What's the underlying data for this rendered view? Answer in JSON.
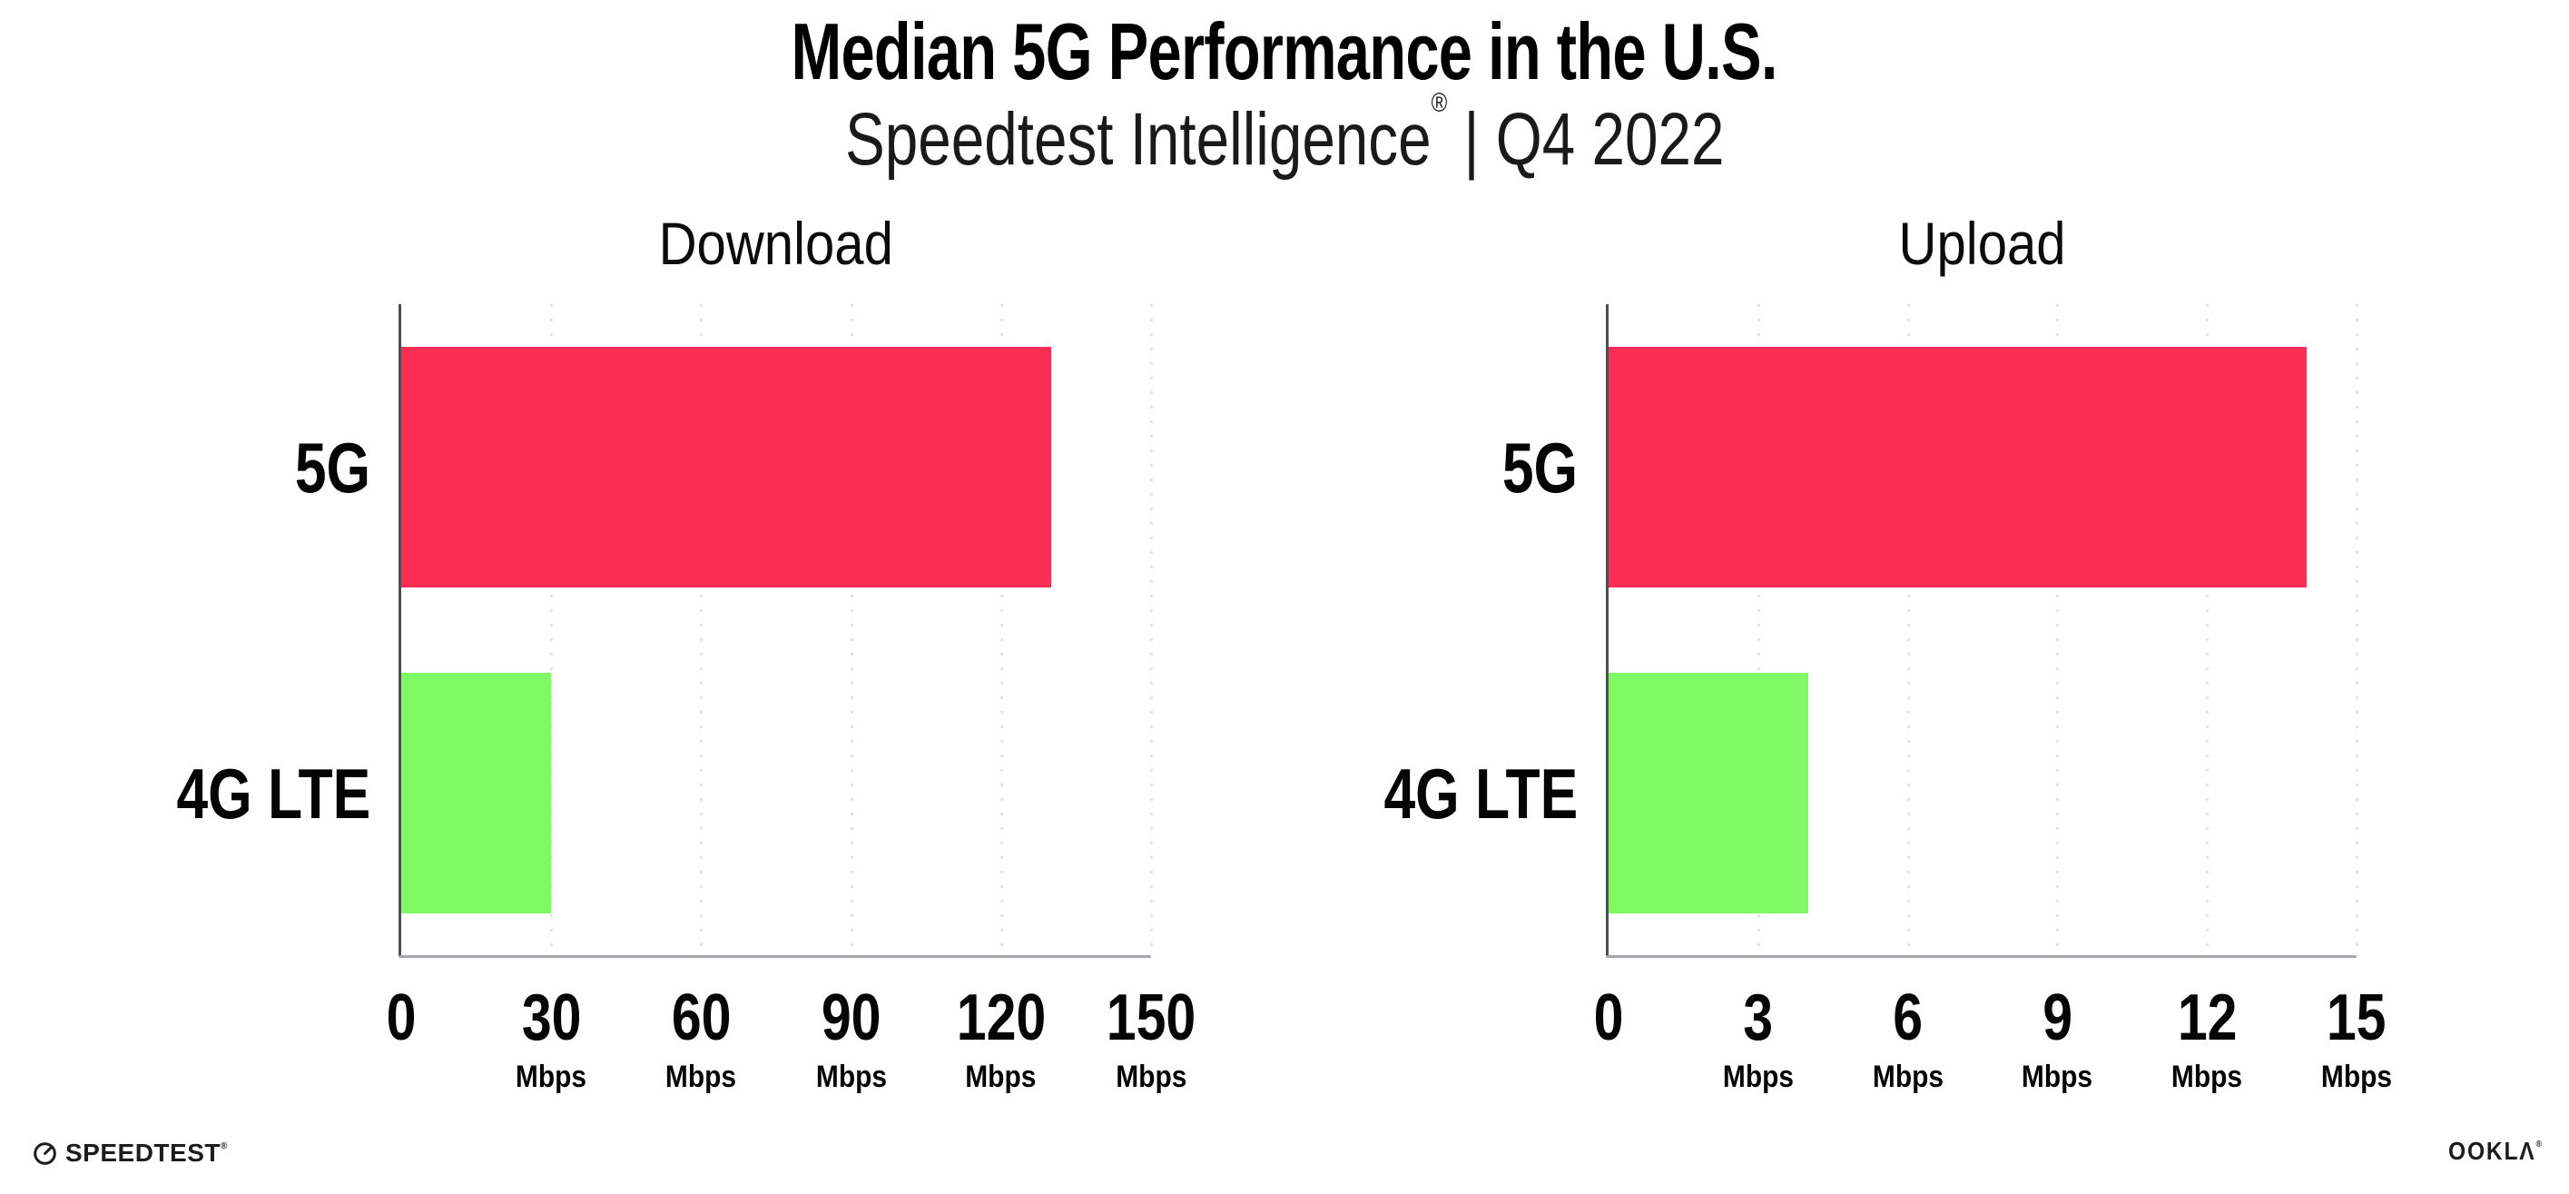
{
  "title": "Median 5G Performance in the U.S.",
  "subtitle": {
    "brand": "Speedtest Intelligence",
    "reg": "®",
    "rest": " | Q4 2022"
  },
  "chart_data": [
    {
      "type": "bar",
      "orientation": "horizontal",
      "title": "Download",
      "categories": [
        "5G",
        "4G LTE"
      ],
      "values": [
        130,
        30
      ],
      "unit": "Mbps",
      "xlim": [
        0,
        150
      ],
      "xticks": [
        0,
        30,
        60,
        90,
        120,
        150
      ],
      "series_colors": [
        "#FC2E56",
        "#80FA64"
      ],
      "grid": "vertical-dotted",
      "legend": "none"
    },
    {
      "type": "bar",
      "orientation": "horizontal",
      "title": "Upload",
      "categories": [
        "5G",
        "4G LTE"
      ],
      "values": [
        14,
        4
      ],
      "unit": "Mbps",
      "xlim": [
        0,
        15
      ],
      "xticks": [
        0,
        3,
        6,
        9,
        12,
        15
      ],
      "series_colors": [
        "#FC2E56",
        "#80FA64"
      ],
      "grid": "vertical-dotted",
      "legend": "none"
    }
  ],
  "colors": {
    "bar_5g": "#FC2E56",
    "bar_4g_lte": "#80FA64",
    "gridline": "#E3E3EC",
    "x_axis": "#A6A6AD",
    "y_spine": "#4E4E55",
    "text": "#050505"
  },
  "footer": {
    "speedtest_logo_text": "SPEEDTEST",
    "speedtest_reg": "®",
    "ookla_logo_text": "OOKLΛ",
    "ookla_reg": "®"
  }
}
